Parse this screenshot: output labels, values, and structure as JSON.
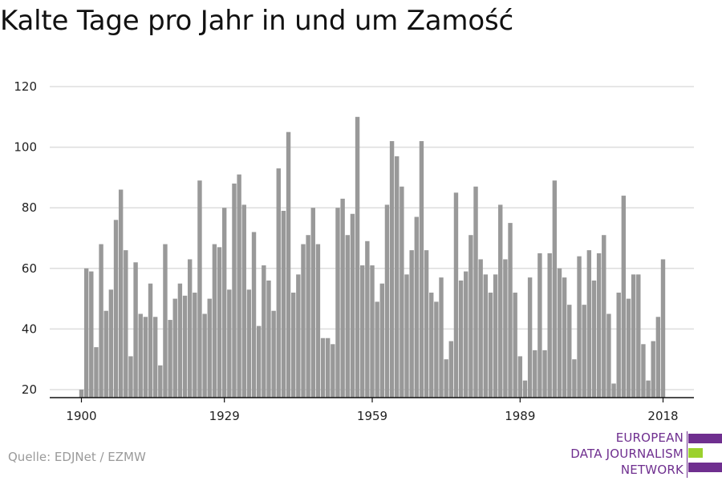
{
  "title": "Kalte Tage pro Jahr in und um Zamość",
  "source": "Quelle: EDJNet / EZMW",
  "logo": {
    "lines": [
      "EUROPEAN",
      "DATA JOURNALISM",
      "NETWORK"
    ],
    "purple": "#6f2f8f",
    "green": "#9bd12e"
  },
  "colors": {
    "bar": "#999999",
    "grid": "#dddddd",
    "axis": "#111111"
  },
  "chart_data": {
    "type": "bar",
    "title": "Kalte Tage pro Jahr in und um Zamość",
    "xlabel": "",
    "ylabel": "",
    "ylim": [
      20,
      120
    ],
    "yticks": [
      20,
      40,
      60,
      80,
      100,
      120
    ],
    "xticks": [
      1900,
      1929,
      1959,
      1989,
      2018
    ],
    "grid": true,
    "x": [
      1900,
      1901,
      1902,
      1903,
      1904,
      1905,
      1906,
      1907,
      1908,
      1909,
      1910,
      1911,
      1912,
      1913,
      1914,
      1915,
      1916,
      1917,
      1918,
      1919,
      1920,
      1921,
      1922,
      1923,
      1924,
      1925,
      1926,
      1927,
      1928,
      1929,
      1930,
      1931,
      1932,
      1933,
      1934,
      1935,
      1936,
      1937,
      1938,
      1939,
      1940,
      1941,
      1942,
      1943,
      1944,
      1945,
      1946,
      1947,
      1948,
      1949,
      1950,
      1951,
      1952,
      1953,
      1954,
      1955,
      1956,
      1957,
      1958,
      1959,
      1960,
      1961,
      1962,
      1963,
      1964,
      1965,
      1966,
      1967,
      1968,
      1969,
      1970,
      1971,
      1972,
      1973,
      1974,
      1975,
      1976,
      1977,
      1978,
      1979,
      1980,
      1981,
      1982,
      1983,
      1984,
      1985,
      1986,
      1987,
      1988,
      1989,
      1990,
      1991,
      1992,
      1993,
      1994,
      1995,
      1996,
      1997,
      1998,
      1999,
      2000,
      2001,
      2002,
      2003,
      2004,
      2005,
      2006,
      2007,
      2008,
      2009,
      2010,
      2011,
      2012,
      2013,
      2014,
      2015,
      2016,
      2017,
      2018
    ],
    "values": [
      20,
      60,
      59,
      34,
      68,
      46,
      53,
      76,
      86,
      66,
      31,
      62,
      45,
      44,
      55,
      44,
      28,
      68,
      43,
      50,
      55,
      51,
      63,
      52,
      89,
      45,
      50,
      68,
      67,
      80,
      53,
      88,
      91,
      81,
      53,
      72,
      41,
      61,
      56,
      46,
      93,
      79,
      105,
      52,
      58,
      68,
      71,
      80,
      68,
      37,
      37,
      35,
      80,
      83,
      71,
      78,
      110,
      61,
      69,
      61,
      49,
      55,
      81,
      102,
      97,
      87,
      58,
      66,
      77,
      102,
      66,
      52,
      49,
      57,
      30,
      36,
      85,
      56,
      59,
      71,
      87,
      63,
      58,
      52,
      58,
      81,
      63,
      75,
      52,
      31,
      23,
      57,
      33,
      65,
      33,
      65,
      89,
      60,
      57,
      48,
      30,
      64,
      48,
      66,
      56,
      65,
      71,
      45,
      22,
      52,
      84,
      50,
      58,
      58,
      35,
      23,
      36,
      44,
      63
    ]
  }
}
